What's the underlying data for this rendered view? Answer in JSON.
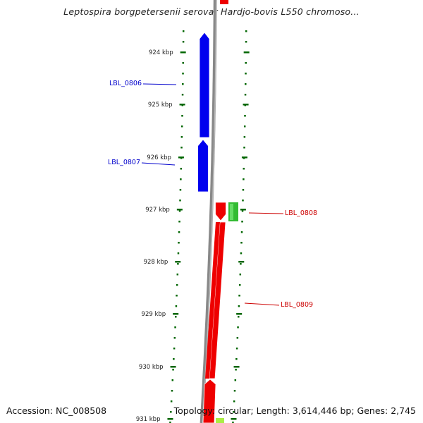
{
  "title": "Leptospira borgpetersenii serovar Hardjo-bovis L550 chromoso...",
  "footer": {
    "accession": "Accession: NC_008508",
    "summary": "Topology: circular; Length: 3,614,446 bp; Genes: 2,745"
  },
  "colors": {
    "forward_gene": "#ee0000",
    "reverse_gene": "#0000ee",
    "feature_green": "#33bb33",
    "feature_lightgreen": "#aaee44",
    "backbone": "#888888",
    "tick": "#006600",
    "label_forward": "#cc0000",
    "label_reverse": "#0000cc"
  },
  "scale": {
    "unit": "kbp",
    "major_ticks": [
      {
        "label": "924 kbp"
      },
      {
        "label": "925 kbp"
      },
      {
        "label": "926 kbp"
      },
      {
        "label": "927 kbp"
      },
      {
        "label": "928 kbp"
      },
      {
        "label": "929 kbp"
      },
      {
        "label": "930 kbp"
      },
      {
        "label": "931 kbp"
      }
    ]
  },
  "genes": [
    {
      "name": "LBL_0806",
      "strand": "reverse"
    },
    {
      "name": "LBL_0807",
      "strand": "reverse"
    },
    {
      "name": "LBL_0808",
      "strand": "forward"
    },
    {
      "name": "LBL_0809",
      "strand": "forward"
    }
  ]
}
